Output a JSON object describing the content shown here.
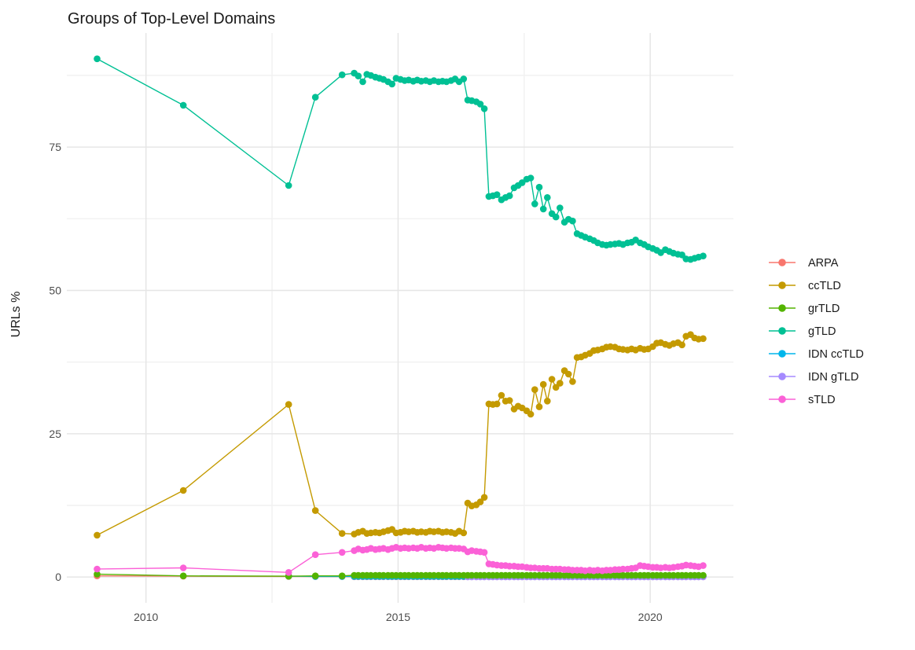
{
  "chart_data": {
    "type": "line",
    "title": "Groups of Top-Level Domains",
    "xlabel": "",
    "ylabel": "URLs %",
    "legend_position": "right",
    "grid": true,
    "background": "#FFFFFF",
    "grid_color_major": "#E6E6E6",
    "grid_color_minor": "#F1F1F1",
    "tick_label_color": "#4D4D4D",
    "x_domain": [
      2008.43,
      2021.65
    ],
    "y_domain": [
      -4.5,
      94.9
    ],
    "x_ticks": [
      {
        "value": 2010,
        "label": "2010"
      },
      {
        "value": 2015,
        "label": "2015"
      },
      {
        "value": 2020,
        "label": "2020"
      }
    ],
    "x_minor_ticks": [
      2012.5,
      2017.5
    ],
    "y_ticks": [
      {
        "value": 0,
        "label": "0"
      },
      {
        "value": 25,
        "label": "25"
      },
      {
        "value": 50,
        "label": "50"
      },
      {
        "value": 75,
        "label": "75"
      }
    ],
    "y_minor_ticks": [
      12.5,
      37.5,
      62.5,
      87.5
    ],
    "x": [
      2009.03,
      2010.74,
      2012.83,
      2013.36,
      2013.89,
      2014.13,
      2014.21,
      2014.3,
      2014.38,
      2014.46,
      2014.55,
      2014.63,
      2014.71,
      2014.8,
      2014.88,
      2014.96,
      2015.05,
      2015.13,
      2015.21,
      2015.3,
      2015.38,
      2015.46,
      2015.55,
      2015.63,
      2015.71,
      2015.8,
      2015.88,
      2015.96,
      2016.05,
      2016.13,
      2016.21,
      2016.3,
      2016.38,
      2016.46,
      2016.55,
      2016.63,
      2016.71,
      2016.8,
      2016.88,
      2016.96,
      2017.05,
      2017.13,
      2017.21,
      2017.3,
      2017.38,
      2017.46,
      2017.55,
      2017.63,
      2017.71,
      2017.8,
      2017.88,
      2017.96,
      2018.05,
      2018.13,
      2018.21,
      2018.3,
      2018.38,
      2018.46,
      2018.55,
      2018.63,
      2018.71,
      2018.8,
      2018.88,
      2018.96,
      2019.05,
      2019.13,
      2019.21,
      2019.3,
      2019.38,
      2019.46,
      2019.55,
      2019.63,
      2019.71,
      2019.8,
      2019.88,
      2019.96,
      2020.05,
      2020.13,
      2020.21,
      2020.3,
      2020.38,
      2020.46,
      2020.55,
      2020.63,
      2020.71,
      2020.8,
      2020.88,
      2020.96,
      2021.05
    ],
    "series": [
      {
        "name": "ARPA",
        "color": "#F8766D",
        "values": [
          0.2,
          0.15,
          0.1,
          0.08,
          0.08,
          0.05,
          0.05,
          0.05,
          0.05,
          0.05,
          0.05,
          0.05,
          0.05,
          0.05,
          0.05,
          0.05,
          0.05,
          0.05,
          0.05,
          0.05,
          0.05,
          0.05,
          0.05,
          0.05,
          0.05,
          0.05,
          0.05,
          0.05,
          0.05,
          0.05,
          0.05,
          0.05,
          0.05,
          0.05,
          0.05,
          0.05,
          0.05,
          0.05,
          0.05,
          0.05,
          0.05,
          0.05,
          0.05,
          0.05,
          0.05,
          0.05,
          0.05,
          0.05,
          0.05,
          0.05,
          0.05,
          0.05,
          0.05,
          0.05,
          0.05,
          0.05,
          0.05,
          0.05,
          0.05,
          0.05,
          0.05,
          0.05,
          0.05,
          0.05,
          0.05,
          0.05,
          0.05,
          0.05,
          0.05,
          0.05,
          0.05,
          0.05,
          0.05,
          0.05,
          0.05,
          0.05,
          0.05,
          0.05,
          0.05,
          0.05,
          0.05,
          0.05,
          0.05,
          0.05,
          0.05,
          0.05,
          0.05,
          0.05,
          0.05
        ]
      },
      {
        "name": "ccTLD",
        "color": "#C49A00",
        "values": [
          7.3,
          15.1,
          30.1,
          11.6,
          7.6,
          7.5,
          7.8,
          8.0,
          7.6,
          7.7,
          7.8,
          7.7,
          7.9,
          8.1,
          8.3,
          7.7,
          7.8,
          8.0,
          7.9,
          8.0,
          7.8,
          7.9,
          7.8,
          8.0,
          7.9,
          8.0,
          7.8,
          7.9,
          7.8,
          7.6,
          8.0,
          7.7,
          12.9,
          12.4,
          12.6,
          13.1,
          13.9,
          30.2,
          30.1,
          30.2,
          31.7,
          30.7,
          30.8,
          29.3,
          29.8,
          29.5,
          29.0,
          28.4,
          32.7,
          29.7,
          33.6,
          30.7,
          34.5,
          33.1,
          33.8,
          36.0,
          35.4,
          34.1,
          38.3,
          38.4,
          38.7,
          39.0,
          39.5,
          39.6,
          39.8,
          40.1,
          40.2,
          40.1,
          39.8,
          39.7,
          39.6,
          39.8,
          39.6,
          39.9,
          39.7,
          39.8,
          40.2,
          40.8,
          40.9,
          40.6,
          40.4,
          40.7,
          40.9,
          40.5,
          42.0,
          42.3,
          41.7,
          41.5,
          41.6
        ]
      },
      {
        "name": "grTLD",
        "color": "#53B400",
        "values": [
          0.5,
          0.2,
          0.15,
          0.2,
          0.2,
          0.3,
          0.3,
          0.3,
          0.3,
          0.3,
          0.3,
          0.3,
          0.3,
          0.3,
          0.3,
          0.3,
          0.3,
          0.3,
          0.3,
          0.3,
          0.3,
          0.3,
          0.3,
          0.3,
          0.3,
          0.3,
          0.3,
          0.3,
          0.3,
          0.3,
          0.3,
          0.3,
          0.3,
          0.3,
          0.3,
          0.3,
          0.3,
          0.3,
          0.3,
          0.3,
          0.3,
          0.3,
          0.3,
          0.3,
          0.3,
          0.3,
          0.3,
          0.3,
          0.3,
          0.3,
          0.3,
          0.3,
          0.3,
          0.3,
          0.3,
          0.3,
          0.3,
          0.3,
          0.3,
          0.3,
          0.3,
          0.3,
          0.3,
          0.3,
          0.3,
          0.3,
          0.3,
          0.3,
          0.3,
          0.3,
          0.3,
          0.3,
          0.3,
          0.3,
          0.3,
          0.3,
          0.3,
          0.3,
          0.3,
          0.3,
          0.3,
          0.3,
          0.3,
          0.3,
          0.3,
          0.3,
          0.3,
          0.3,
          0.3
        ]
      },
      {
        "name": "gTLD",
        "color": "#00C094",
        "values": [
          90.4,
          82.3,
          68.3,
          83.7,
          87.6,
          87.9,
          87.4,
          86.4,
          87.7,
          87.5,
          87.2,
          87.0,
          86.8,
          86.4,
          86.0,
          87.0,
          86.8,
          86.6,
          86.7,
          86.5,
          86.7,
          86.5,
          86.6,
          86.4,
          86.6,
          86.4,
          86.5,
          86.4,
          86.6,
          86.9,
          86.4,
          86.9,
          83.2,
          83.1,
          82.9,
          82.5,
          81.7,
          66.4,
          66.5,
          66.7,
          65.8,
          66.2,
          66.5,
          67.9,
          68.3,
          68.8,
          69.4,
          69.6,
          65.1,
          68.0,
          64.2,
          66.2,
          63.4,
          62.8,
          64.4,
          61.9,
          62.4,
          62.1,
          59.9,
          59.6,
          59.3,
          59.0,
          58.7,
          58.3,
          58.0,
          57.9,
          58.0,
          58.1,
          58.2,
          58.0,
          58.3,
          58.4,
          58.8,
          58.3,
          58.0,
          57.6,
          57.3,
          57.0,
          56.6,
          57.1,
          56.8,
          56.5,
          56.3,
          56.2,
          55.5,
          55.4,
          55.6,
          55.8,
          56.0
        ]
      },
      {
        "name": "IDN ccTLD",
        "color": "#00B6EB",
        "values": [
          null,
          null,
          0.15,
          0.1,
          0.1,
          0.1,
          0.1,
          0.1,
          0.1,
          0.1,
          0.1,
          0.1,
          0.1,
          0.1,
          0.1,
          0.1,
          0.1,
          0.1,
          0.1,
          0.1,
          0.1,
          0.1,
          0.1,
          0.1,
          0.1,
          0.1,
          0.1,
          0.1,
          0.1,
          0.1,
          0.1,
          0.1,
          0.1,
          0.1,
          0.1,
          0.1,
          0.1,
          0.1,
          0.1,
          0.1,
          0.1,
          0.1,
          0.1,
          0.1,
          0.1,
          0.1,
          0.1,
          0.1,
          0.1,
          0.1,
          0.1,
          0.1,
          0.1,
          0.1,
          0.1,
          0.1,
          0.1,
          0.1,
          0.1,
          0.1,
          0.1,
          0.1,
          0.1,
          0.1,
          0.1,
          0.1,
          0.1,
          0.1,
          0.1,
          0.1,
          0.1,
          0.1,
          0.1,
          0.1,
          0.1,
          0.1,
          0.1,
          0.1,
          0.1,
          0.1,
          0.1,
          0.1,
          0.1,
          0.1,
          0.1,
          0.1,
          0.1,
          0.1,
          0.1
        ]
      },
      {
        "name": "IDN gTLD",
        "color": "#A58AFF",
        "values": [
          null,
          null,
          null,
          null,
          null,
          null,
          null,
          null,
          null,
          null,
          null,
          null,
          null,
          null,
          null,
          null,
          null,
          null,
          null,
          null,
          null,
          null,
          null,
          null,
          null,
          null,
          null,
          null,
          null,
          null,
          null,
          null,
          0.02,
          0.02,
          0.02,
          0.02,
          0.02,
          0.02,
          0.02,
          0.02,
          0.02,
          0.02,
          0.02,
          0.02,
          0.02,
          0.02,
          0.02,
          0.02,
          0.02,
          0.02,
          0.02,
          0.02,
          0.02,
          0.02,
          0.02,
          0.02,
          0.02,
          0.02,
          0.02,
          0.02,
          0.02,
          0.02,
          0.02,
          0.02,
          0.02,
          0.02,
          0.02,
          0.02,
          0.02,
          0.02,
          0.02,
          0.02,
          0.02,
          0.02,
          0.02,
          0.02,
          0.02,
          0.02,
          0.02,
          0.02,
          0.02,
          0.02,
          0.02,
          0.02,
          0.02,
          0.02,
          0.02,
          0.02,
          0.02
        ]
      },
      {
        "name": "sTLD",
        "color": "#FB61D7",
        "values": [
          1.4,
          1.6,
          0.8,
          3.9,
          4.3,
          4.6,
          4.9,
          4.7,
          4.8,
          5.0,
          4.8,
          4.9,
          5.0,
          4.8,
          5.0,
          5.2,
          5.0,
          5.1,
          5.0,
          5.1,
          5.0,
          5.2,
          5.0,
          5.1,
          5.0,
          5.2,
          5.1,
          5.0,
          5.1,
          5.0,
          5.0,
          4.9,
          4.4,
          4.6,
          4.5,
          4.4,
          4.3,
          2.3,
          2.2,
          2.1,
          2.0,
          2.0,
          1.9,
          1.9,
          1.8,
          1.8,
          1.7,
          1.6,
          1.6,
          1.5,
          1.5,
          1.5,
          1.4,
          1.4,
          1.4,
          1.3,
          1.3,
          1.2,
          1.2,
          1.2,
          1.1,
          1.2,
          1.1,
          1.2,
          1.1,
          1.2,
          1.2,
          1.3,
          1.3,
          1.4,
          1.4,
          1.5,
          1.6,
          2.0,
          1.9,
          1.8,
          1.7,
          1.7,
          1.6,
          1.7,
          1.6,
          1.7,
          1.8,
          1.9,
          2.1,
          2.0,
          1.9,
          1.8,
          2.0
        ]
      }
    ]
  }
}
